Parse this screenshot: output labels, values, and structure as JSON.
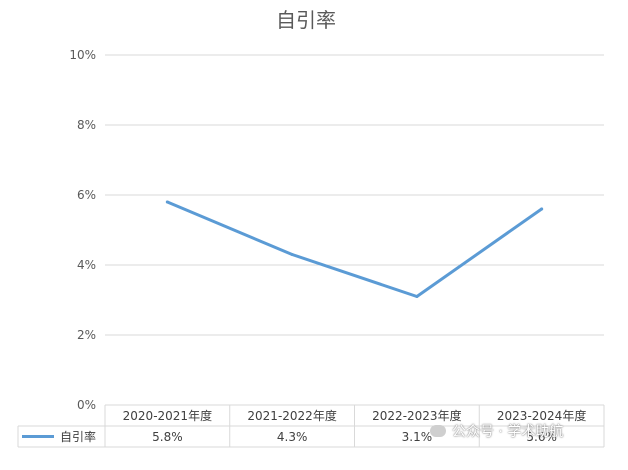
{
  "chart_data": {
    "type": "line",
    "title": "自引率",
    "categories": [
      "2020-2021年度",
      "2021-2022年度",
      "2022-2023年度",
      "2023-2024年度"
    ],
    "series": [
      {
        "name": "自引率",
        "values": [
          5.8,
          4.3,
          3.1,
          5.6
        ],
        "labels": [
          "5.8%",
          "4.3%",
          "3.1%",
          "5.6%"
        ],
        "color": "#5b9bd5"
      }
    ],
    "y_ticks": [
      "0%",
      "2%",
      "4%",
      "6%",
      "8%",
      "10%"
    ],
    "ylim": [
      0,
      10
    ],
    "grid": true,
    "legend": "data-table-left",
    "data_table": true
  },
  "watermark": {
    "text": "公众号 · 学术助航"
  }
}
